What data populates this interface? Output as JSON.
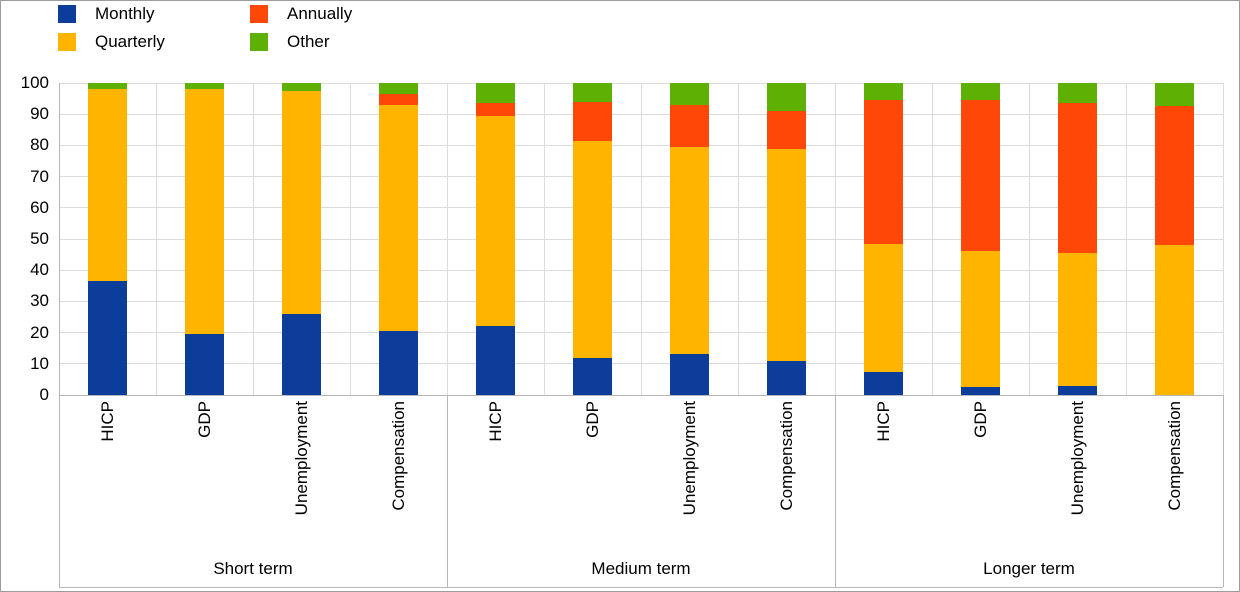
{
  "legend": {
    "items": [
      {
        "label": "Monthly",
        "color": "#0d3d9b"
      },
      {
        "label": "Quarterly",
        "color": "#ffb400"
      },
      {
        "label": "Annually",
        "color": "#ff4708"
      },
      {
        "label": "Other",
        "color": "#5eb005"
      }
    ]
  },
  "chart_data": {
    "type": "bar",
    "stacked": true,
    "title": "",
    "xlabel": "",
    "ylabel": "",
    "ylim": [
      0,
      100
    ],
    "yticks": [
      0,
      10,
      20,
      30,
      40,
      50,
      60,
      70,
      80,
      90,
      100
    ],
    "grid": true,
    "legend_position": "top-left",
    "groups": [
      {
        "label": "Short term",
        "categories": [
          "HICP",
          "GDP",
          "Unemployment",
          "Compensation"
        ]
      },
      {
        "label": "Medium term",
        "categories": [
          "HICP",
          "GDP",
          "Unemployment",
          "Compensation"
        ]
      },
      {
        "label": "Longer term",
        "categories": [
          "HICP",
          "GDP",
          "Unemployment",
          "Compensation"
        ]
      }
    ],
    "series": [
      {
        "name": "Monthly",
        "color": "#0d3d9b",
        "values": [
          36.5,
          19.5,
          26.0,
          20.5,
          22.0,
          12.0,
          13.0,
          11.0,
          7.5,
          2.5,
          3.0,
          0.0
        ]
      },
      {
        "name": "Quarterly",
        "color": "#ffb400",
        "values": [
          61.5,
          78.5,
          71.5,
          72.5,
          67.5,
          69.5,
          66.5,
          68.0,
          41.0,
          43.5,
          42.5,
          48.0
        ]
      },
      {
        "name": "Annually",
        "color": "#ff4708",
        "values": [
          0.0,
          0.0,
          0.0,
          3.5,
          4.0,
          12.5,
          13.5,
          12.0,
          46.0,
          48.5,
          48.0,
          44.5
        ]
      },
      {
        "name": "Other",
        "color": "#5eb005",
        "values": [
          2.0,
          2.0,
          2.5,
          3.5,
          6.5,
          6.0,
          7.0,
          9.0,
          5.5,
          5.5,
          6.5,
          7.5
        ]
      }
    ]
  }
}
